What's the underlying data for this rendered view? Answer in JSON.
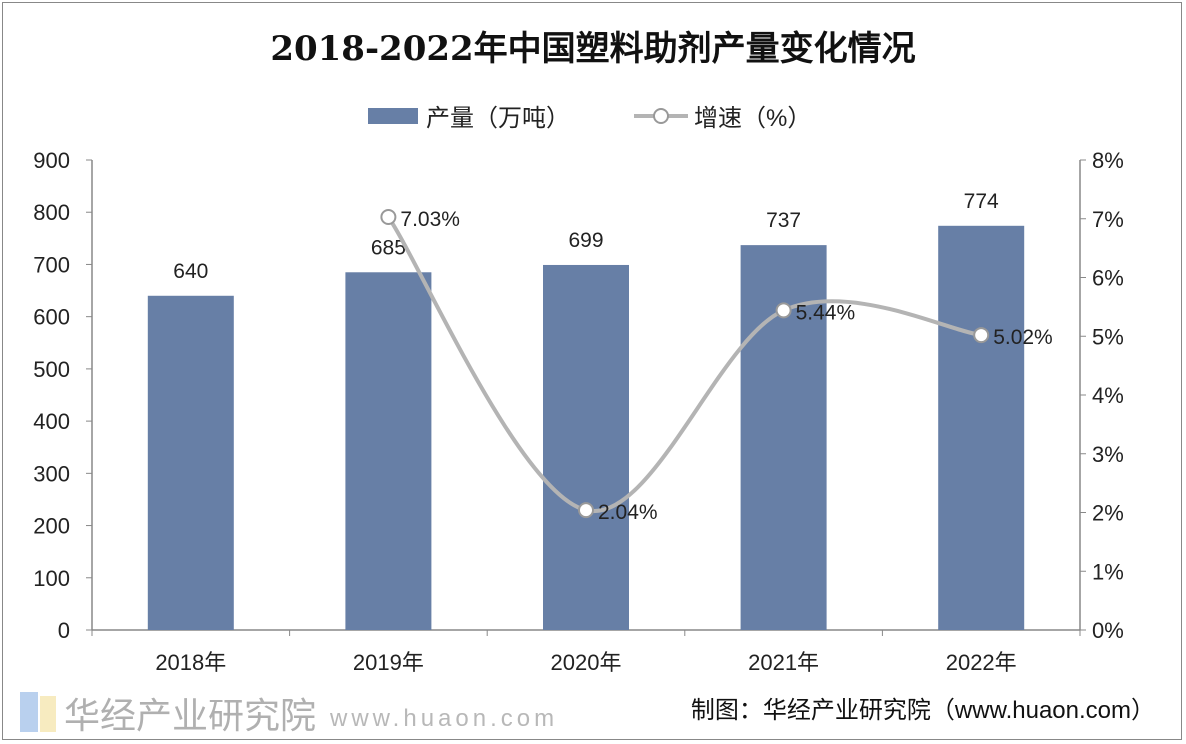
{
  "chart_data": {
    "type": "bar+line",
    "title": "2018-2022年中国塑料助剂产量变化情况",
    "categories": [
      "2018年",
      "2019年",
      "2020年",
      "2021年",
      "2022年"
    ],
    "series": [
      {
        "name": "产量（万吨）",
        "type": "bar",
        "axis": "left",
        "values": [
          640,
          685,
          699,
          737,
          774
        ],
        "labels": [
          "640",
          "685",
          "699",
          "737",
          "774"
        ]
      },
      {
        "name": "增速（%）",
        "type": "line",
        "axis": "right",
        "values": [
          null,
          7.03,
          2.04,
          5.44,
          5.02
        ],
        "labels": [
          "",
          "7.03%",
          "2.04%",
          "5.44%",
          "5.02%"
        ]
      }
    ],
    "left_axis": {
      "ylim": [
        0,
        900
      ],
      "ticks": [
        "0",
        "100",
        "200",
        "300",
        "400",
        "500",
        "600",
        "700",
        "800",
        "900"
      ]
    },
    "right_axis": {
      "ylim": [
        0,
        8
      ],
      "ticks": [
        "0%",
        "1%",
        "2%",
        "3%",
        "4%",
        "5%",
        "6%",
        "7%",
        "8%"
      ]
    },
    "legend": "top-center",
    "grid": false,
    "colors": {
      "bar": "#677fa6",
      "line": "#b4b4b4"
    }
  },
  "source": "制图：华经产业研究院（www.huaon.com）",
  "watermark": {
    "name": "华经产业研究院",
    "url": "www.huaon.com"
  }
}
